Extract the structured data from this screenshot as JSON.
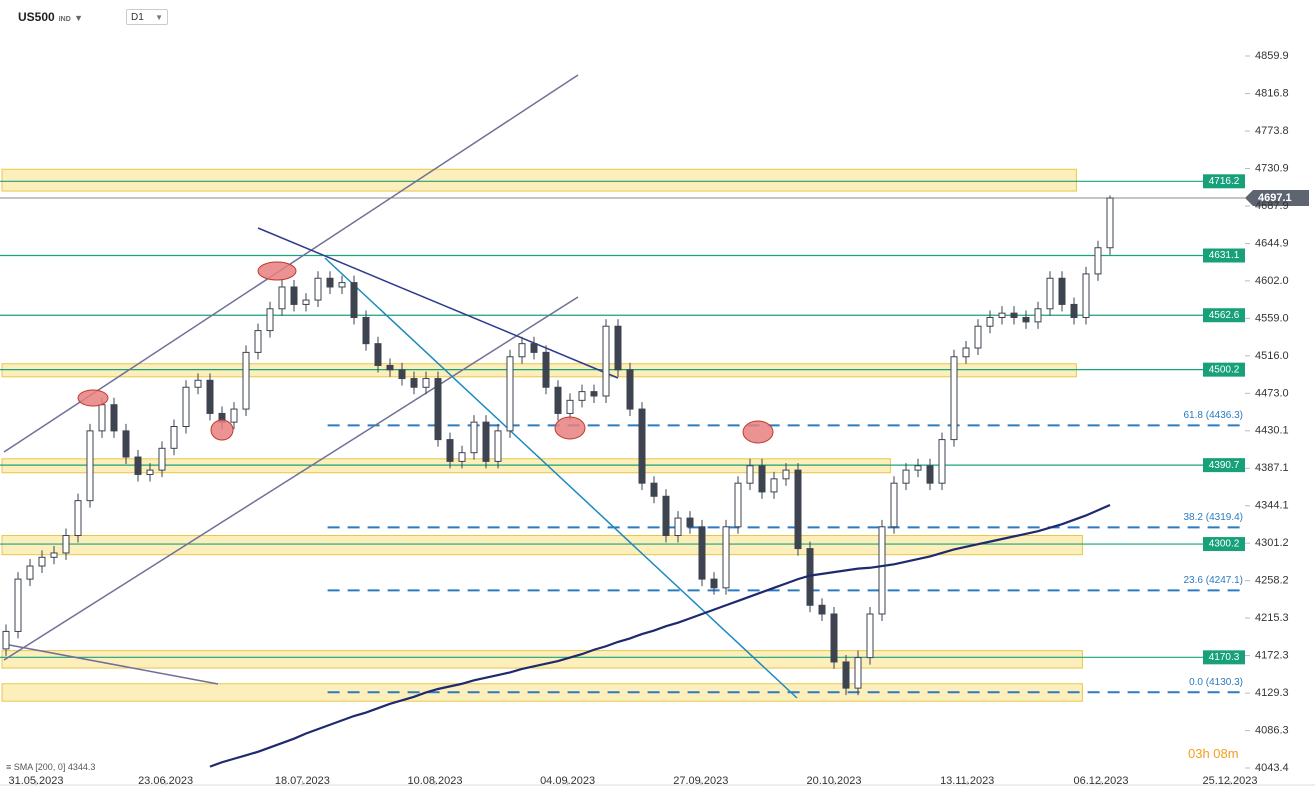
{
  "header": {
    "symbol": "US500",
    "market": "IND",
    "timeframe": "D1"
  },
  "indicator": {
    "label": "SMA",
    "params": "[200, 0]",
    "value": "4344.3"
  },
  "timer": "03h 08m",
  "chart_data": {
    "type": "candlestick",
    "xlim": [
      -0.5,
      103.25
    ],
    "ylim": [
      4023.9,
      4924.1
    ],
    "xticks": [
      {
        "value": 2.5,
        "label": "31.05.2023"
      },
      {
        "value": 13.3,
        "label": "23.06.2023"
      },
      {
        "value": 24.7,
        "label": "18.07.2023"
      },
      {
        "value": 35.75,
        "label": "10.08.2023"
      },
      {
        "value": 46.8,
        "label": "04.09.2023"
      },
      {
        "value": 57.9,
        "label": "27.09.2023"
      },
      {
        "value": 69,
        "label": "20.10.2023"
      },
      {
        "value": 80.1,
        "label": "13.11.2023"
      },
      {
        "value": 91.25,
        "label": "06.12.2023"
      },
      {
        "value": 102,
        "label": "25.12.2023"
      }
    ],
    "yticks": [
      4043.4,
      4086.3,
      4129.3,
      4172.3,
      4215.3,
      4258.2,
      4301.2,
      4344.1,
      4387.1,
      4430.1,
      {
        "value": 4473,
        "label": "4473.0"
      },
      {
        "value": 4516,
        "label": "4516.0"
      },
      {
        "value": 4559,
        "label": "4559.0"
      },
      {
        "value": 4602,
        "label": "4602.0"
      },
      4644.9,
      4687.9,
      4730.9,
      4773.8,
      4816.8,
      4859.9
    ],
    "open": [
      4180,
      4200,
      4260,
      4275,
      4285,
      4290,
      4310,
      4350,
      4430,
      4460,
      4430,
      4400,
      4380,
      4385,
      4410,
      4435,
      4480,
      4488,
      4450,
      4440,
      4455,
      4520,
      4545,
      4570,
      4595,
      4575,
      4580,
      4605,
      4595,
      4600,
      4560,
      4530,
      4505,
      4500,
      4490,
      4480,
      4490,
      4420,
      4395,
      4405,
      4440,
      4395,
      4430,
      4515,
      4530,
      4520,
      4480,
      4450,
      4465,
      4475,
      4470,
      4550,
      4500,
      4455,
      4370,
      4355,
      4310,
      4330,
      4320,
      4260,
      4250,
      4320,
      4370,
      4390,
      4360,
      4375,
      4385,
      4295,
      4230,
      4220,
      4165,
      4135,
      4170,
      4220,
      4320,
      4370,
      4385,
      4390,
      4370,
      4420,
      4515,
      4525,
      4550,
      4560,
      4565,
      4560,
      4555,
      4570,
      4605,
      4575,
      4560,
      4610,
      4640
    ],
    "high": [
      4208,
      4268,
      4283,
      4293,
      4298,
      4318,
      4358,
      4438,
      4468,
      4468,
      4438,
      4408,
      4393,
      4418,
      4443,
      4488,
      4496,
      4496,
      4458,
      4463,
      4528,
      4553,
      4578,
      4603,
      4603,
      4588,
      4613,
      4613,
      4608,
      4608,
      4568,
      4538,
      4513,
      4508,
      4498,
      4498,
      4498,
      4428,
      4413,
      4448,
      4448,
      4438,
      4523,
      4538,
      4538,
      4528,
      4488,
      4473,
      4483,
      4483,
      4558,
      4558,
      4508,
      4463,
      4378,
      4363,
      4338,
      4338,
      4328,
      4268,
      4328,
      4378,
      4398,
      4398,
      4383,
      4393,
      4393,
      4303,
      4238,
      4228,
      4173,
      4178,
      4228,
      4328,
      4378,
      4393,
      4398,
      4398,
      4428,
      4523,
      4533,
      4558,
      4568,
      4573,
      4573,
      4568,
      4578,
      4613,
      4613,
      4583,
      4618,
      4648,
      4700
    ],
    "low": [
      4172,
      4192,
      4252,
      4267,
      4277,
      4282,
      4302,
      4342,
      4422,
      4422,
      4392,
      4372,
      4372,
      4377,
      4402,
      4427,
      4472,
      4442,
      4432,
      4432,
      4447,
      4512,
      4537,
      4562,
      4567,
      4567,
      4572,
      4587,
      4587,
      4552,
      4522,
      4497,
      4492,
      4482,
      4472,
      4472,
      4412,
      4387,
      4387,
      4397,
      4387,
      4387,
      4422,
      4507,
      4512,
      4472,
      4442,
      4442,
      4457,
      4462,
      4462,
      4492,
      4447,
      4362,
      4347,
      4302,
      4302,
      4312,
      4252,
      4242,
      4242,
      4312,
      4362,
      4352,
      4352,
      4367,
      4287,
      4222,
      4212,
      4157,
      4127,
      4127,
      4162,
      4212,
      4312,
      4362,
      4377,
      4362,
      4362,
      4412,
      4507,
      4517,
      4542,
      4552,
      4552,
      4547,
      4547,
      4562,
      4567,
      4552,
      4552,
      4602,
      4632
    ],
    "close": [
      4200,
      4260,
      4275,
      4285,
      4290,
      4310,
      4350,
      4430,
      4460,
      4430,
      4400,
      4380,
      4385,
      4410,
      4435,
      4480,
      4488,
      4450,
      4440,
      4455,
      4520,
      4545,
      4570,
      4595,
      4575,
      4580,
      4605,
      4595,
      4600,
      4560,
      4530,
      4505,
      4500,
      4490,
      4480,
      4490,
      4420,
      4395,
      4405,
      4440,
      4395,
      4430,
      4515,
      4530,
      4520,
      4480,
      4450,
      4465,
      4475,
      4470,
      4550,
      4500,
      4455,
      4370,
      4355,
      4310,
      4330,
      4320,
      4260,
      4250,
      4320,
      4370,
      4390,
      4360,
      4375,
      4385,
      4295,
      4230,
      4220,
      4165,
      4135,
      4170,
      4220,
      4320,
      4370,
      4385,
      4390,
      4370,
      4420,
      4515,
      4525,
      4550,
      4560,
      4565,
      4560,
      4555,
      4570,
      4605,
      4575,
      4560,
      4610,
      4640,
      4697
    ],
    "sma": [
      null,
      null,
      null,
      null,
      null,
      null,
      null,
      null,
      null,
      null,
      null,
      null,
      null,
      null,
      null,
      null,
      null,
      4045,
      4050,
      4054,
      4058,
      4062,
      4067,
      4072,
      4077,
      4083,
      4088,
      4093,
      4098,
      4103,
      4107,
      4112,
      4117,
      4121,
      4125,
      4130,
      4134,
      4137,
      4140,
      4144,
      4147,
      4150,
      4153,
      4157,
      4160,
      4163,
      4166,
      4170,
      4174,
      4179,
      4183,
      4188,
      4192,
      4197,
      4201,
      4206,
      4210,
      4215,
      4220,
      4225,
      4230,
      4235,
      4240,
      4245,
      4250,
      4255,
      4260,
      4264,
      4266,
      4268,
      4270,
      4272,
      4273,
      4275,
      4277,
      4280,
      4283,
      4286,
      4290,
      4294,
      4297,
      4300,
      4303,
      4306,
      4309,
      4312,
      4315,
      4319,
      4323,
      4328,
      4333,
      4339,
      4345
    ],
    "sma_color": "#1f2a6e",
    "up_color": "#ffffff",
    "down_color": "#3d4450",
    "levels": [
      {
        "value": 4716.2,
        "label": "4716.2"
      },
      {
        "value": 4631.1,
        "label": "4631.1"
      },
      {
        "value": 4562.6,
        "label": "4562.6"
      },
      {
        "value": 4500.2,
        "label": "4500.2"
      },
      {
        "value": 4390.7,
        "label": "4390.7"
      },
      {
        "value": 4300.2,
        "label": "4300.2"
      },
      {
        "value": 4170.3,
        "label": "4170.3"
      }
    ],
    "zones": [
      {
        "low": 4705,
        "high": 4730,
        "until": 89.2
      },
      {
        "low": 4492,
        "high": 4507,
        "until": 89.2
      },
      {
        "low": 4382,
        "high": 4398,
        "until": 73.7
      },
      {
        "low": 4288,
        "high": 4310,
        "until": 89.7
      },
      {
        "low": 4158,
        "high": 4178,
        "until": 89.7
      },
      {
        "low": 4120,
        "high": 4140,
        "until": 89.7
      }
    ],
    "fibs": [
      {
        "value": 4436.3,
        "label": "61.8 (4436.3)"
      },
      {
        "value": 4319.4,
        "label": "38.2 (4319.4)"
      },
      {
        "value": 4247.1,
        "label": "23.6 (4247.1)"
      },
      {
        "value": 4130.3,
        "label": "0.0 (4130.3)"
      }
    ],
    "fib_from": 26.8,
    "last": {
      "value": 4697.1,
      "label": "4697.1"
    }
  }
}
